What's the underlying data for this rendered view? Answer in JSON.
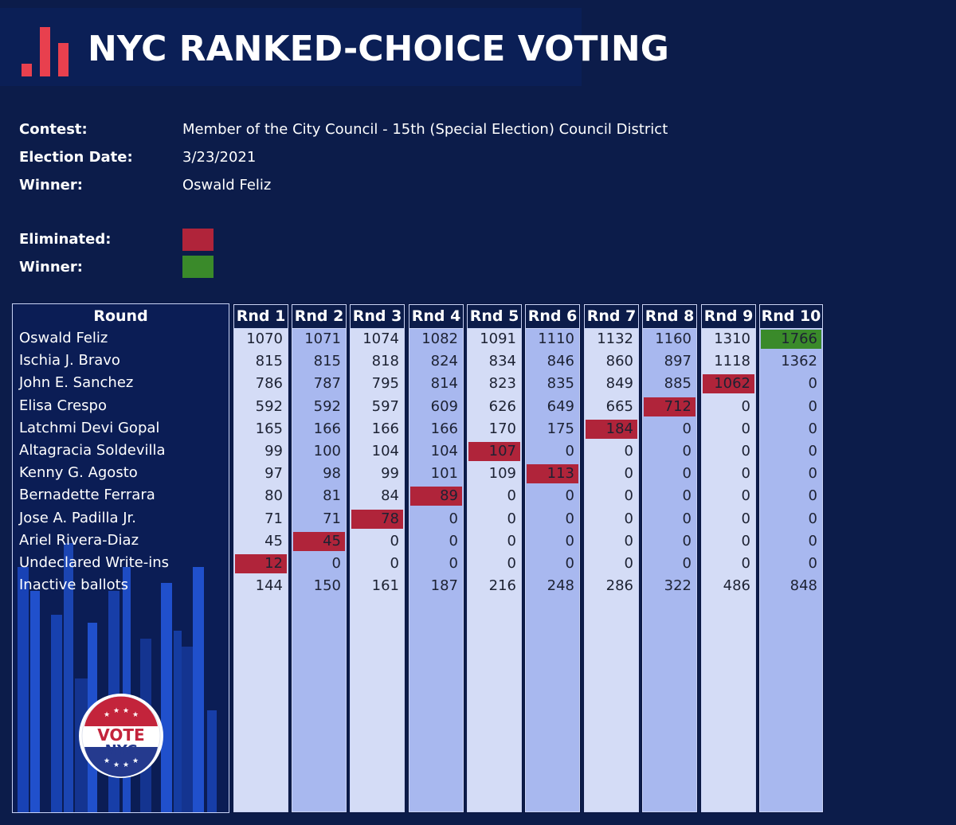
{
  "header": {
    "title": "NYC RANKED-CHOICE VOTING",
    "logo_icon": "bar-chart-icon",
    "logo_color": "#e8404e"
  },
  "info": {
    "contest_label": "Contest:",
    "contest_value": "Member of the City Council - 15th (Special Election) Council District",
    "date_label": "Election Date:",
    "date_value": "3/23/2021",
    "winner_label": "Winner:",
    "winner_value": "Oswald Feliz"
  },
  "legend": {
    "eliminated_label": "Eliminated:",
    "eliminated_color": "#b0243a",
    "winner_label": "Winner:",
    "winner_color": "#3a8a2a"
  },
  "table": {
    "round_header": "Round",
    "rounds": [
      "Rnd 1",
      "Rnd 2",
      "Rnd 3",
      "Rnd 4",
      "Rnd 5",
      "Rnd 6",
      "Rnd 7",
      "Rnd 8",
      "Rnd 9",
      "Rnd 10"
    ],
    "rows": [
      {
        "name": "Oswald Feliz",
        "values": [
          "1070",
          "1071",
          "1074",
          "1082",
          "1091",
          "1110",
          "1132",
          "1160",
          "1310",
          "1766"
        ],
        "status": "winner",
        "status_round": 10
      },
      {
        "name": "Ischia J. Bravo",
        "values": [
          "815",
          "815",
          "818",
          "824",
          "834",
          "846",
          "860",
          "897",
          "1118",
          "1362"
        ],
        "status": "",
        "status_round": 0
      },
      {
        "name": "John E. Sanchez",
        "values": [
          "786",
          "787",
          "795",
          "814",
          "823",
          "835",
          "849",
          "885",
          "1062",
          "0"
        ],
        "status": "eliminated",
        "status_round": 9
      },
      {
        "name": "Elisa Crespo",
        "values": [
          "592",
          "592",
          "597",
          "609",
          "626",
          "649",
          "665",
          "712",
          "0",
          "0"
        ],
        "status": "eliminated",
        "status_round": 8
      },
      {
        "name": "Latchmi Devi Gopal",
        "values": [
          "165",
          "166",
          "166",
          "166",
          "170",
          "175",
          "184",
          "0",
          "0",
          "0"
        ],
        "status": "eliminated",
        "status_round": 7
      },
      {
        "name": "Altagracia Soldevilla",
        "values": [
          "99",
          "100",
          "104",
          "104",
          "107",
          "0",
          "0",
          "0",
          "0",
          "0"
        ],
        "status": "eliminated",
        "status_round": 5
      },
      {
        "name": "Kenny G. Agosto",
        "values": [
          "97",
          "98",
          "99",
          "101",
          "109",
          "113",
          "0",
          "0",
          "0",
          "0"
        ],
        "status": "eliminated",
        "status_round": 6
      },
      {
        "name": "Bernadette Ferrara",
        "values": [
          "80",
          "81",
          "84",
          "89",
          "0",
          "0",
          "0",
          "0",
          "0",
          "0"
        ],
        "status": "eliminated",
        "status_round": 4
      },
      {
        "name": "Jose A. Padilla Jr.",
        "values": [
          "71",
          "71",
          "78",
          "0",
          "0",
          "0",
          "0",
          "0",
          "0",
          "0"
        ],
        "status": "eliminated",
        "status_round": 3
      },
      {
        "name": "Ariel Rivera-Diaz",
        "values": [
          "45",
          "45",
          "0",
          "0",
          "0",
          "0",
          "0",
          "0",
          "0",
          "0"
        ],
        "status": "eliminated",
        "status_round": 2
      },
      {
        "name": "Undeclared Write-ins",
        "values": [
          "12",
          "0",
          "0",
          "0",
          "0",
          "0",
          "0",
          "0",
          "0",
          "0"
        ],
        "status": "eliminated",
        "status_round": 1
      },
      {
        "name": "Inactive ballots",
        "values": [
          "144",
          "150",
          "161",
          "187",
          "216",
          "248",
          "286",
          "322",
          "486",
          "848"
        ],
        "status": "",
        "status_round": 0
      }
    ]
  },
  "badge": {
    "line1": "VOTE",
    "line2": "NYC",
    "icon": "vote-nyc-badge-icon"
  }
}
